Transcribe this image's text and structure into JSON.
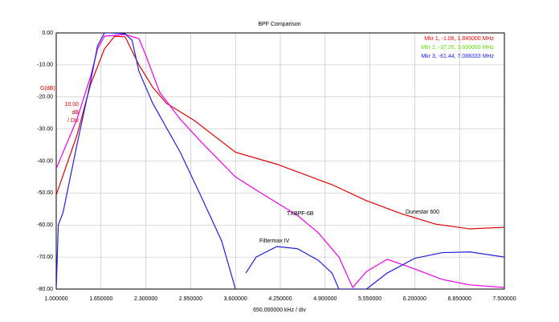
{
  "chart_data": {
    "type": "line",
    "title": "BPF Comparison",
    "xlabel": "650.000000 kHz / div",
    "ylabel": "G(dB)",
    "yscale_label": [
      "10.00",
      "dB",
      "/ Div"
    ],
    "xlim": [
      1,
      7.5
    ],
    "ylim": [
      -80,
      0
    ],
    "grid": true,
    "xticks": [
      {
        "value": 1,
        "label": "1.000000"
      },
      {
        "value": 1.65,
        "label": "1.650000"
      },
      {
        "value": 2.3,
        "label": "2.300000"
      },
      {
        "value": 2.95,
        "label": "2.950000"
      },
      {
        "value": 3.6,
        "label": "3.600000"
      },
      {
        "value": 4.25,
        "label": "4.250000"
      },
      {
        "value": 4.9,
        "label": "4.900000"
      },
      {
        "value": 5.55,
        "label": "5.550000"
      },
      {
        "value": 6.2,
        "label": "6.200000"
      },
      {
        "value": 6.85,
        "label": "6.850000"
      },
      {
        "value": 7.5,
        "label": "7.500000"
      }
    ],
    "yticks": [
      {
        "value": 0,
        "label": "0.00"
      },
      {
        "value": -10,
        "label": "-10.00"
      },
      {
        "value": -20,
        "label": "-20.00"
      },
      {
        "value": -30,
        "label": "-30.00"
      },
      {
        "value": -40,
        "label": "-40.00"
      },
      {
        "value": -50,
        "label": "-50.00"
      },
      {
        "value": -60,
        "label": "-60.00"
      },
      {
        "value": -70,
        "label": "-70.00"
      },
      {
        "value": -80,
        "label": "-80.00"
      }
    ],
    "markers": [
      {
        "text": "Mkr 1, -1.06, 1.845000 MHz",
        "color": "#ff0000"
      },
      {
        "text": "Mkr 2, -37.26, 3.600000 MHz",
        "color": "#66dd00"
      },
      {
        "text": "Mkr 3, -61.44, 7.088333 MHz",
        "color": "#2222ff"
      }
    ],
    "series": [
      {
        "name": "Dunestar 600",
        "color": "#e00000",
        "x": [
          1,
          1.3,
          1.5,
          1.7,
          1.845,
          2.0,
          2.2,
          2.4,
          2.6,
          3.0,
          3.6,
          4.2,
          5.0,
          5.5,
          6.0,
          6.5,
          7.0,
          7.5
        ],
        "values": [
          -50.6,
          -32,
          -16,
          -5,
          -1.06,
          -1.2,
          -10,
          -17,
          -22,
          -27.3,
          -37.26,
          -41,
          -47.4,
          -52.4,
          -56.4,
          -59.7,
          -61.2,
          -60.7
        ]
      },
      {
        "name": "TXBPF-6B",
        "color": "#ee00ee",
        "x": [
          1,
          1.3,
          1.5,
          1.6,
          1.7,
          2.0,
          2.2,
          2.3,
          2.5,
          2.8,
          3.1,
          3.6,
          4.0,
          4.5,
          4.8,
          5.1,
          5.3,
          5.5,
          5.8,
          6.2,
          6.6,
          7.0,
          7.5
        ],
        "values": [
          -42.4,
          -27,
          -13.5,
          -5,
          -1,
          -0.5,
          -1.8,
          -7,
          -18.5,
          -27,
          -34,
          -45,
          -50.4,
          -57,
          -62.4,
          -70,
          -79.5,
          -74.5,
          -70.7,
          -73.7,
          -77,
          -78.7,
          -79.5
        ]
      },
      {
        "name": "Filtermax IV",
        "color": "#2020e0",
        "x": [
          1,
          1.03,
          1.1,
          1.3,
          1.5,
          1.6,
          1.7,
          1.8,
          2.0,
          2.1,
          2.2,
          2.4,
          2.8,
          3.1,
          3.4,
          3.6,
          3.65,
          3.75,
          3.9,
          4.2,
          4.5,
          4.8,
          5.0,
          5.1,
          5.5,
          5.8,
          6.2,
          6.6,
          7.0,
          7.5
        ],
        "values": [
          -80,
          -60,
          -56,
          -35,
          -15,
          -4,
          0,
          0,
          -0.3,
          -2.3,
          -12,
          -22,
          -37.3,
          -51,
          -65,
          -80,
          null,
          -75,
          -70,
          -66.7,
          -67.4,
          -71,
          -75,
          -80,
          -80,
          -75,
          -70.4,
          -68.6,
          -68.4,
          -70
        ]
      }
    ]
  }
}
